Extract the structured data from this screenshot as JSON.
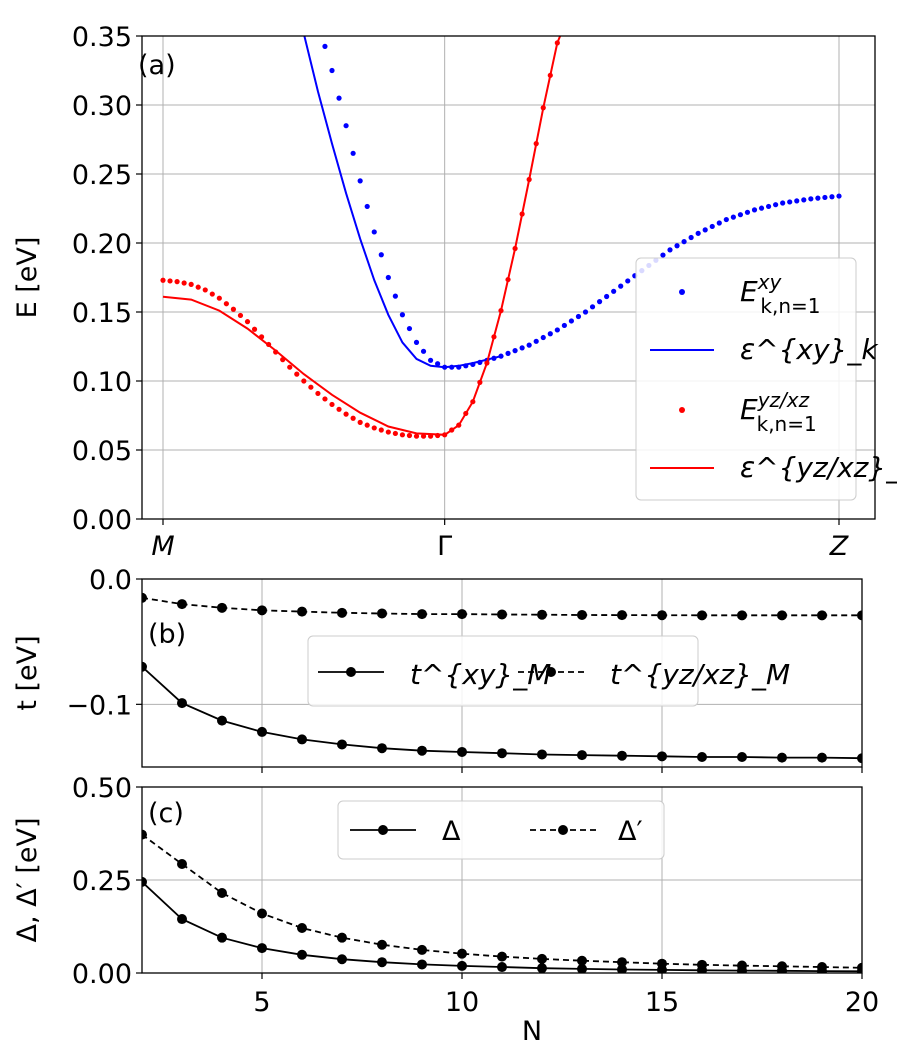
{
  "chart_data": [
    {
      "type": "line",
      "panel_label": "(a)",
      "ylabel": "E [eV]",
      "ylim": [
        0.0,
        0.35
      ],
      "yticks": [
        "0.00",
        "0.05",
        "0.10",
        "0.15",
        "0.20",
        "0.25",
        "0.30",
        "0.35"
      ],
      "xticks": [
        "M",
        "Γ",
        "Z"
      ],
      "grid": true,
      "legend_position": "right",
      "legend": [
        "E^{xy}_{k,n=1}",
        "ε^{xy}_k",
        "E^{yz/xz}_{k,n=1}",
        "ε^{yz/xz}_k"
      ],
      "x_note": "path coordinate: M=0, Γ=1, Z=2.4",
      "series": [
        {
          "name": "E^{xy}_{k,n=1}",
          "style": "dots",
          "color": "#0000ff",
          "x": [
            0.55,
            0.6,
            0.65,
            0.7,
            0.75,
            0.8,
            0.85,
            0.9,
            0.95,
            1.0,
            1.05,
            1.1,
            1.15,
            1.2,
            1.3,
            1.4,
            1.5,
            1.6,
            1.7,
            1.8,
            1.9,
            2.0,
            2.1,
            2.2,
            2.3,
            2.4
          ],
          "y": [
            0.36,
            0.325,
            0.285,
            0.245,
            0.208,
            0.175,
            0.148,
            0.128,
            0.115,
            0.11,
            0.11,
            0.112,
            0.115,
            0.118,
            0.126,
            0.137,
            0.15,
            0.165,
            0.18,
            0.195,
            0.207,
            0.217,
            0.224,
            0.229,
            0.232,
            0.234
          ]
        },
        {
          "name": "ε^{xy}_k",
          "style": "line",
          "color": "#0000ff",
          "x": [
            0.49,
            0.55,
            0.6,
            0.65,
            0.7,
            0.75,
            0.8,
            0.85,
            0.9,
            0.95,
            1.0,
            1.05,
            1.1,
            1.2
          ],
          "y": [
            0.36,
            0.31,
            0.272,
            0.236,
            0.203,
            0.173,
            0.148,
            0.128,
            0.116,
            0.111,
            0.11,
            0.111,
            0.113,
            0.118
          ]
        },
        {
          "name": "E^{yz/xz}_{k,n=1}",
          "style": "dots",
          "color": "#ff0000",
          "x": [
            0.0,
            0.05,
            0.1,
            0.15,
            0.2,
            0.25,
            0.3,
            0.35,
            0.4,
            0.45,
            0.5,
            0.55,
            0.6,
            0.65,
            0.7,
            0.75,
            0.8,
            0.85,
            0.9,
            0.95,
            1.0,
            1.05,
            1.1,
            1.15,
            1.2,
            1.25,
            1.3,
            1.35,
            1.4,
            1.45
          ],
          "y": [
            0.173,
            0.172,
            0.17,
            0.166,
            0.16,
            0.152,
            0.143,
            0.132,
            0.121,
            0.11,
            0.1,
            0.091,
            0.083,
            0.076,
            0.07,
            0.066,
            0.063,
            0.061,
            0.06,
            0.06,
            0.061,
            0.068,
            0.085,
            0.113,
            0.151,
            0.196,
            0.246,
            0.298,
            0.345,
            0.38
          ]
        },
        {
          "name": "ε^{yz/xz}_k",
          "style": "line",
          "color": "#ff0000",
          "x": [
            0.0,
            0.1,
            0.2,
            0.3,
            0.4,
            0.5,
            0.6,
            0.7,
            0.8,
            0.9,
            1.0,
            1.05,
            1.1,
            1.15,
            1.2,
            1.25,
            1.3,
            1.35,
            1.4,
            1.43
          ],
          "y": [
            0.161,
            0.159,
            0.151,
            0.138,
            0.122,
            0.105,
            0.09,
            0.077,
            0.067,
            0.062,
            0.061,
            0.068,
            0.085,
            0.113,
            0.151,
            0.196,
            0.246,
            0.298,
            0.345,
            0.36
          ]
        }
      ]
    },
    {
      "type": "line",
      "panel_label": "(b)",
      "ylabel": "t [eV]",
      "ylim": [
        -0.15,
        0.0
      ],
      "yticks": [
        "0.0",
        "−0.1"
      ],
      "xlim": [
        2,
        20
      ],
      "grid": true,
      "legend_position": "center",
      "legend": [
        "t^{xy}_M",
        "t^{yz/xz}_M"
      ],
      "series": [
        {
          "name": "t^{xy}_M",
          "style": "solid",
          "color": "#000000",
          "x": [
            2,
            3,
            4,
            5,
            6,
            7,
            8,
            9,
            10,
            11,
            12,
            13,
            14,
            15,
            16,
            17,
            18,
            19,
            20
          ],
          "y": [
            -0.07,
            -0.099,
            -0.113,
            -0.122,
            -0.128,
            -0.132,
            -0.135,
            -0.137,
            -0.138,
            -0.139,
            -0.14,
            -0.1405,
            -0.141,
            -0.1415,
            -0.142,
            -0.142,
            -0.1425,
            -0.1425,
            -0.143
          ]
        },
        {
          "name": "t^{yz/xz}_M",
          "style": "dashed",
          "color": "#000000",
          "x": [
            2,
            3,
            4,
            5,
            6,
            7,
            8,
            9,
            10,
            11,
            12,
            13,
            14,
            15,
            16,
            17,
            18,
            19,
            20
          ],
          "y": [
            -0.015,
            -0.02,
            -0.023,
            -0.025,
            -0.026,
            -0.027,
            -0.0275,
            -0.028,
            -0.028,
            -0.0283,
            -0.0285,
            -0.0287,
            -0.0288,
            -0.0289,
            -0.029,
            -0.029,
            -0.029,
            -0.029,
            -0.029
          ]
        }
      ]
    },
    {
      "type": "line",
      "panel_label": "(c)",
      "ylabel": "Δ, Δ′ [eV]",
      "xlabel": "N",
      "ylim": [
        0.0,
        0.5
      ],
      "yticks": [
        "0.00",
        "0.25",
        "0.50"
      ],
      "xlim": [
        2,
        20
      ],
      "xticks": [
        "5",
        "10",
        "15",
        "20"
      ],
      "grid": true,
      "legend_position": "top-center",
      "legend": [
        "Δ",
        "Δ′"
      ],
      "series": [
        {
          "name": "Δ",
          "style": "solid",
          "color": "#000000",
          "x": [
            2,
            3,
            4,
            5,
            6,
            7,
            8,
            9,
            10,
            11,
            12,
            13,
            14,
            15,
            16,
            17,
            18,
            19,
            20
          ],
          "y": [
            0.245,
            0.145,
            0.095,
            0.067,
            0.049,
            0.037,
            0.029,
            0.023,
            0.019,
            0.016,
            0.013,
            0.011,
            0.0095,
            0.0083,
            0.0073,
            0.0065,
            0.0058,
            0.0052,
            0.0047
          ]
        },
        {
          "name": "Δ′",
          "style": "dashed",
          "color": "#000000",
          "x": [
            2,
            3,
            4,
            5,
            6,
            7,
            8,
            9,
            10,
            11,
            12,
            13,
            14,
            15,
            16,
            17,
            18,
            19,
            20
          ],
          "y": [
            0.372,
            0.293,
            0.215,
            0.16,
            0.121,
            0.095,
            0.076,
            0.062,
            0.052,
            0.044,
            0.038,
            0.033,
            0.029,
            0.025,
            0.022,
            0.02,
            0.018,
            0.016,
            0.014
          ]
        }
      ]
    }
  ]
}
